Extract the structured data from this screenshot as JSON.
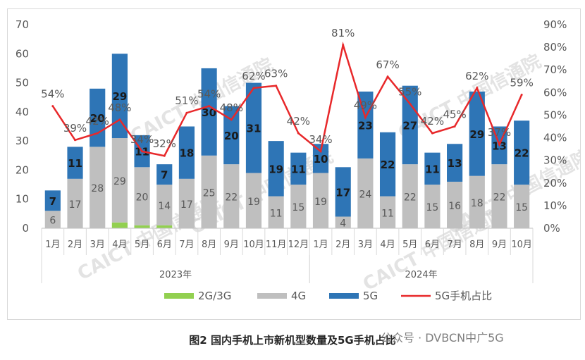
{
  "chart_data": {
    "type": "bar",
    "stacked": true,
    "categories": [
      "1月",
      "2月",
      "3月",
      "4月",
      "5月",
      "6月",
      "7月",
      "8月",
      "9月",
      "10月",
      "11月",
      "12月",
      "1月",
      "2月",
      "3月",
      "4月",
      "5月",
      "6月",
      "7月",
      "8月",
      "9月",
      "10月"
    ],
    "groups": [
      {
        "label": "2023年",
        "count": 12
      },
      {
        "label": "2024年",
        "count": 10
      }
    ],
    "series": [
      {
        "name": "2G/3G",
        "color": "#92d050",
        "axis": "left",
        "type": "bar",
        "values": [
          0,
          0,
          0,
          2,
          1,
          1,
          0,
          0,
          0,
          0,
          0,
          0,
          0,
          0,
          0,
          0,
          0,
          0,
          0,
          0,
          0,
          0
        ]
      },
      {
        "name": "4G",
        "color": "#bfbfbf",
        "axis": "left",
        "type": "bar",
        "values": [
          6,
          17,
          28,
          29,
          20,
          14,
          17,
          25,
          22,
          19,
          11,
          15,
          19,
          4,
          24,
          11,
          22,
          15,
          16,
          18,
          22,
          15
        ],
        "labels": [
          "6",
          "17",
          "28",
          "29",
          "20",
          "14",
          "17",
          "25",
          "22",
          "19",
          "11",
          "15",
          "19",
          "4",
          "24",
          "11",
          "22",
          "15",
          "16",
          "18",
          "22",
          "15"
        ]
      },
      {
        "name": "5G",
        "color": "#2e75b6",
        "axis": "left",
        "type": "bar",
        "values": [
          7,
          11,
          20,
          29,
          11,
          7,
          18,
          30,
          20,
          31,
          19,
          11,
          10,
          17,
          23,
          22,
          27,
          11,
          13,
          29,
          13,
          22
        ],
        "labels": [
          "7",
          "11",
          "20",
          "29",
          "11",
          "7",
          "18",
          "30",
          "20",
          "31",
          "19",
          "11",
          "10",
          "17",
          "23",
          "22",
          "27",
          "11",
          "13",
          "29",
          "13",
          "22"
        ]
      },
      {
        "name": "5G手机占比",
        "color": "#e8282a",
        "axis": "right",
        "type": "line",
        "values": [
          54,
          39,
          42,
          48,
          34,
          32,
          51,
          54,
          48,
          62,
          63,
          42,
          34,
          81,
          49,
          67,
          55,
          42,
          45,
          62,
          37,
          59
        ],
        "labels": [
          "54%",
          "39%",
          "42%",
          "48%",
          "34%",
          "32%",
          "51%",
          "54%",
          "48%",
          "62%",
          "63%",
          "42%",
          "34%",
          "81%",
          "49%",
          "67%",
          "55%",
          "42%",
          "45%",
          "62%",
          "37%",
          "59%"
        ]
      }
    ],
    "y_left": {
      "ticks": [
        "0",
        "10",
        "20",
        "30",
        "40",
        "50",
        "60",
        "70"
      ],
      "lim": [
        0,
        70
      ]
    },
    "y_right": {
      "ticks": [
        "0%",
        "10%",
        "20%",
        "30%",
        "40%",
        "50%",
        "60%",
        "70%",
        "80%",
        "90%"
      ],
      "lim": [
        0,
        90
      ]
    },
    "legend": {
      "position": "bottom"
    },
    "grid": false
  },
  "watermark": {
    "logo_text": "CAICT",
    "logo_cn": "中国信通院"
  },
  "caption": "图2  国内手机上市新机型数量及5G手机占比",
  "source_text": "公众号 · DVBCN中广5G"
}
